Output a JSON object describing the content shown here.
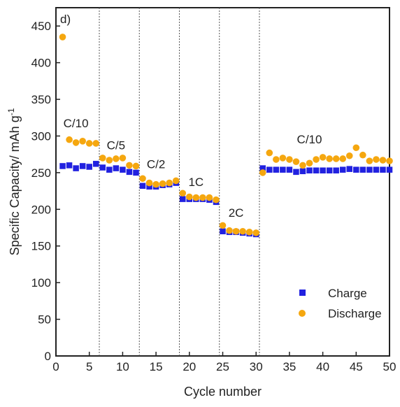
{
  "chart_data": {
    "type": "scatter",
    "panel_label": "d)",
    "xlabel": "Cycle number",
    "ylabel_main": "Specific Capacity/ mAh g",
    "ylabel_sup": "-1",
    "xlim": [
      0,
      50
    ],
    "ylim": [
      0,
      475
    ],
    "xticks": [
      0,
      5,
      10,
      15,
      20,
      25,
      30,
      35,
      40,
      45,
      50
    ],
    "yticks": [
      0,
      50,
      100,
      150,
      200,
      250,
      300,
      350,
      400,
      450
    ],
    "grid": false,
    "legend_position": "bottom-right",
    "rate_boundaries": [
      6.5,
      12.5,
      18.5,
      24.5,
      30.5
    ],
    "annotations": [
      {
        "text": "C/10",
        "x": 3,
        "y": 312
      },
      {
        "text": "C/5",
        "x": 9,
        "y": 282
      },
      {
        "text": "C/2",
        "x": 15,
        "y": 256
      },
      {
        "text": "1C",
        "x": 21,
        "y": 232
      },
      {
        "text": "2C",
        "x": 27,
        "y": 190
      },
      {
        "text": "C/10",
        "x": 38,
        "y": 290
      }
    ],
    "series": [
      {
        "name": "Charge",
        "marker": "square",
        "color": "#2121e0",
        "x": [
          1,
          2,
          3,
          4,
          5,
          6,
          7,
          8,
          9,
          10,
          11,
          12,
          13,
          14,
          15,
          16,
          17,
          18,
          19,
          20,
          21,
          22,
          23,
          24,
          25,
          26,
          27,
          28,
          29,
          30,
          31,
          32,
          33,
          34,
          35,
          36,
          37,
          38,
          39,
          40,
          41,
          42,
          43,
          44,
          45,
          46,
          47,
          48,
          49,
          50
        ],
        "values": [
          259,
          260,
          256,
          259,
          258,
          262,
          257,
          254,
          256,
          254,
          251,
          250,
          232,
          231,
          231,
          233,
          234,
          236,
          214,
          214,
          214,
          214,
          213,
          210,
          170,
          169,
          169,
          168,
          167,
          166,
          256,
          254,
          254,
          254,
          254,
          251,
          252,
          253,
          253,
          253,
          253,
          253,
          254,
          255,
          254,
          254,
          254,
          254,
          254,
          254
        ]
      },
      {
        "name": "Discharge",
        "marker": "circle",
        "color": "#f5a70f",
        "x": [
          1,
          2,
          3,
          4,
          5,
          6,
          7,
          8,
          9,
          10,
          11,
          12,
          13,
          14,
          15,
          16,
          17,
          18,
          19,
          20,
          21,
          22,
          23,
          24,
          25,
          26,
          27,
          28,
          29,
          30,
          31,
          32,
          33,
          34,
          35,
          36,
          37,
          38,
          39,
          40,
          41,
          42,
          43,
          44,
          45,
          46,
          47,
          48,
          49,
          50
        ],
        "values": [
          435,
          295,
          291,
          293,
          290,
          290,
          270,
          267,
          269,
          270,
          260,
          259,
          242,
          236,
          234,
          235,
          236,
          239,
          222,
          217,
          216,
          216,
          216,
          213,
          178,
          171,
          170,
          170,
          169,
          168,
          250,
          277,
          268,
          270,
          268,
          265,
          260,
          263,
          268,
          271,
          269,
          269,
          269,
          273,
          284,
          274,
          266,
          268,
          267,
          266
        ]
      }
    ]
  }
}
